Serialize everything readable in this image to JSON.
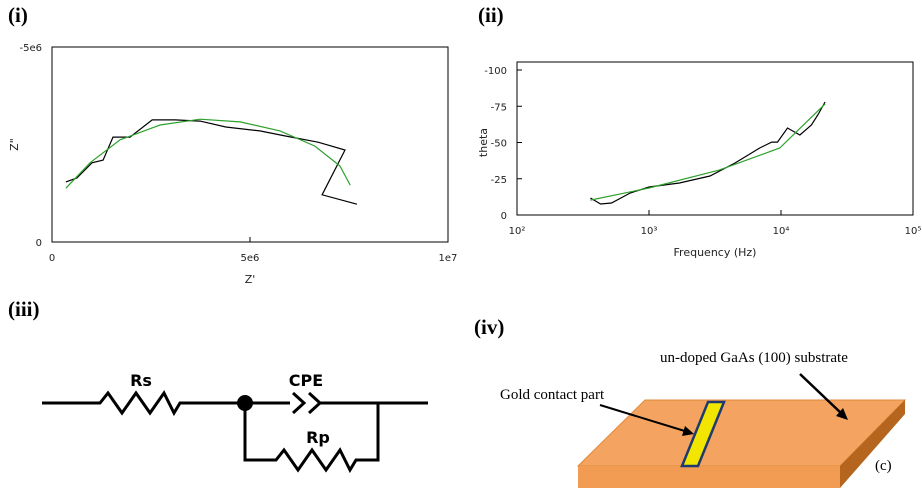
{
  "panel_labels": [
    "(i)",
    "(ii)",
    "(iii)",
    "(iv)"
  ],
  "chart_data": [
    {
      "type": "line",
      "x_label": "Z'",
      "y_label": "Z\"",
      "xlim": [
        0,
        10000000
      ],
      "ylim": [
        0,
        -5000000
      ],
      "xticks": [
        0,
        {
          "value": 5000000,
          "label": "5e6"
        },
        {
          "value": 10000000,
          "label": "1e7"
        }
      ],
      "yticks": [
        0,
        {
          "value": -5000000,
          "label": "-5e6"
        }
      ],
      "series": [
        {
          "color": "#000000",
          "x": [
            350000,
            630000,
            1010000,
            1290000,
            1540000,
            1970000,
            2530000,
            3110000,
            3740000,
            4390000,
            5250000,
            5880000,
            6720000,
            7400000,
            6820000,
            7700000
          ],
          "values": [
            -1540000,
            -1640000,
            -2030000,
            -2100000,
            -2690000,
            -2690000,
            -3130000,
            -3130000,
            -3100000,
            -2950000,
            -2850000,
            -2720000,
            -2560000,
            -2360000,
            -1210000,
            -970000
          ]
        },
        {
          "color": "#2ca02c",
          "x": [
            350000,
            960000,
            1720000,
            2730000,
            3740000,
            4750000,
            5760000,
            6640000,
            7270000,
            7530000
          ],
          "values": [
            -1380000,
            -2030000,
            -2620000,
            -3000000,
            -3150000,
            -3080000,
            -2850000,
            -2460000,
            -1950000,
            -1460000
          ]
        }
      ]
    },
    {
      "type": "line",
      "x_label": "Frequency (Hz)",
      "y_label": "theta",
      "xscale": "log",
      "xlim": [
        100,
        100000
      ],
      "ylim": [
        0,
        -100
      ],
      "xticks": [
        {
          "value": 100,
          "label": "10²"
        },
        {
          "value": 1000,
          "label": "10³"
        },
        {
          "value": 10000,
          "label": "10⁴"
        },
        {
          "value": 100000,
          "label": "10⁵"
        }
      ],
      "yticks": [
        0,
        -25,
        -50,
        -75,
        -100
      ],
      "series": [
        {
          "color": "#000000",
          "x": [
            360,
            430,
            520,
            720,
            1000,
            1700,
            2900,
            4500,
            6900,
            8500,
            9400,
            11200,
            13900,
            17000,
            19000,
            21600
          ],
          "values": [
            -11.7,
            -7.6,
            -8.3,
            -15.2,
            -19.3,
            -22.1,
            -26.9,
            -35.9,
            -46.2,
            -50.3,
            -50.3,
            -60,
            -55.2,
            -62.1,
            -69,
            -77.9
          ]
        },
        {
          "color": "#2ca02c",
          "x": [
            360,
            1000,
            3400,
            9800,
            21600
          ],
          "values": [
            -10.3,
            -18.6,
            -31,
            -46.2,
            -76.6
          ]
        }
      ]
    }
  ],
  "circuit": {
    "labels": [
      "Rs",
      "CPE",
      "Rp"
    ]
  },
  "device": {
    "substrate_label": "un-doped GaAs (100) substrate",
    "contact_label": "Gold contact part",
    "sublabel": "(c)"
  }
}
